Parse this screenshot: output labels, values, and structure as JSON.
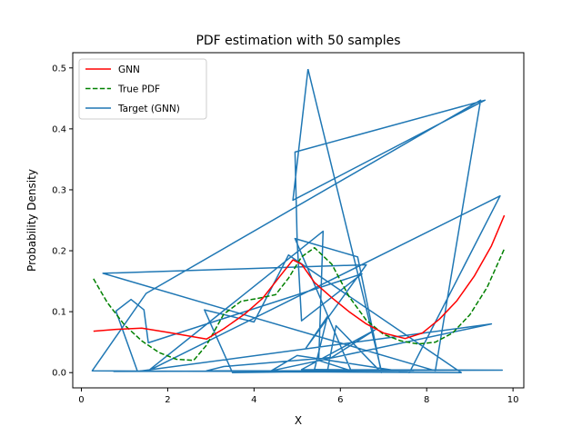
{
  "chart_data": {
    "type": "line",
    "title": "PDF estimation with 50 samples",
    "xlabel": "X",
    "ylabel": "Probability Density",
    "xlim": [
      -0.2,
      10.25
    ],
    "ylim": [
      -0.025,
      0.525
    ],
    "xticks": [
      0,
      2,
      4,
      6,
      8,
      10
    ],
    "yticks": [
      0.0,
      0.1,
      0.2,
      0.3,
      0.4,
      0.5
    ],
    "xtick_labels": [
      "0",
      "2",
      "4",
      "6",
      "8",
      "10"
    ],
    "ytick_labels": [
      "0.0",
      "0.1",
      "0.2",
      "0.3",
      "0.4",
      "0.5"
    ],
    "grid": false,
    "legend_position": "top-left",
    "series": [
      {
        "name": "GNN",
        "color": "#ff0000",
        "style": "solid",
        "x": [
          0.28,
          0.8,
          1.4,
          2.0,
          2.5,
          2.9,
          3.3,
          3.8,
          4.2,
          4.6,
          4.9,
          5.1,
          5.4,
          5.8,
          6.2,
          6.6,
          7.0,
          7.5,
          7.9,
          8.3,
          8.7,
          9.1,
          9.5,
          9.8
        ],
        "y": [
          0.068,
          0.071,
          0.073,
          0.066,
          0.06,
          0.055,
          0.072,
          0.097,
          0.122,
          0.158,
          0.185,
          0.178,
          0.148,
          0.123,
          0.1,
          0.08,
          0.065,
          0.056,
          0.065,
          0.088,
          0.118,
          0.158,
          0.208,
          0.258
        ]
      },
      {
        "name": "True PDF",
        "color": "#008000",
        "style": "dashed",
        "x": [
          0.28,
          0.6,
          1.0,
          1.4,
          1.8,
          2.2,
          2.6,
          2.9,
          3.3,
          3.7,
          4.1,
          4.5,
          4.8,
          5.1,
          5.4,
          5.8,
          6.2,
          6.6,
          7.0,
          7.4,
          7.8,
          8.2,
          8.6,
          9.0,
          9.4,
          9.8
        ],
        "y": [
          0.154,
          0.115,
          0.078,
          0.052,
          0.033,
          0.022,
          0.02,
          0.045,
          0.096,
          0.117,
          0.122,
          0.128,
          0.155,
          0.19,
          0.205,
          0.178,
          0.125,
          0.086,
          0.063,
          0.052,
          0.047,
          0.05,
          0.065,
          0.095,
          0.14,
          0.203
        ]
      },
      {
        "name": "Target (GNN)",
        "color": "#1f77b4",
        "style": "solid",
        "x": [
          5.25,
          4.9,
          9.35,
          4.95,
          5.0,
          5.1,
          6.5,
          1.55,
          1.45,
          1.15,
          0.8,
          1.3,
          9.5,
          4.4,
          5.0,
          7.6,
          9.7,
          1.55,
          5.6,
          5.5,
          6.25,
          4.95,
          6.4,
          6.95,
          5.9,
          5.7,
          3.5,
          2.85,
          4.0,
          4.8,
          8.8,
          0.25,
          1.5,
          9.25,
          8.2,
          0.5,
          6.6,
          5.2,
          5.7,
          5.4,
          9.75,
          0.75,
          7.7,
          5.1,
          6.8,
          5.8,
          3.3,
          2.9,
          6.95,
          5.25
        ],
        "y": [
          0.498,
          0.283,
          0.447,
          0.362,
          0.215,
          0.085,
          0.162,
          0.049,
          0.103,
          0.12,
          0.101,
          0.002,
          0.08,
          0.003,
          0.028,
          0.0,
          0.29,
          0.003,
          0.232,
          0.02,
          0.003,
          0.22,
          0.19,
          0.0,
          0.077,
          0.002,
          0.0,
          0.103,
          0.083,
          0.193,
          0.0,
          0.003,
          0.13,
          0.447,
          0.003,
          0.163,
          0.177,
          0.04,
          0.092,
          0.005,
          0.004,
          0.002,
          0.003,
          0.005,
          0.07,
          0.025,
          0.01,
          0.003,
          0.003,
          0.498
        ]
      }
    ]
  }
}
